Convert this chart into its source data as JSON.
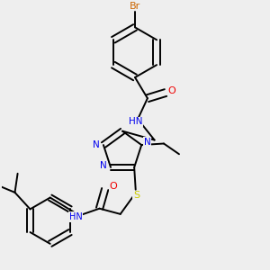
{
  "bg_color": "#eeeeee",
  "atom_colors": {
    "C": "#000000",
    "H": "#808080",
    "N": "#0000ee",
    "O": "#ee0000",
    "S": "#cccc00",
    "Br": "#cc6600"
  },
  "lw": 1.4,
  "fontsize": 7.5
}
